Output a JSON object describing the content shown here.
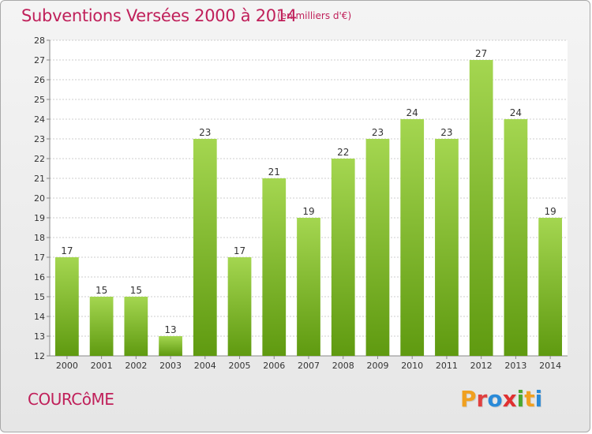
{
  "header": {
    "title": "Subventions Versées 2000 à 2014",
    "subtitle": "(en milliers d'€)"
  },
  "footer": {
    "commune": "COURCôME",
    "logo_text": "Proxiti",
    "logo_letters": [
      {
        "ch": "P",
        "color": "#f0a020"
      },
      {
        "ch": "r",
        "color": "#e04040"
      },
      {
        "ch": "o",
        "color": "#2a8ad8"
      },
      {
        "ch": "x",
        "color": "#e03030"
      },
      {
        "ch": "i",
        "color": "#4aa830"
      },
      {
        "ch": "t",
        "color": "#f0a020"
      },
      {
        "ch": "i",
        "color": "#2a8ad8"
      }
    ]
  },
  "colors": {
    "title": "#c0205a",
    "bar_top": "#a4d650",
    "bar_bottom": "#5f9a10",
    "grid": "#cccccc",
    "axis": "#888888"
  },
  "chart_data": {
    "type": "bar",
    "categories": [
      "2000",
      "2001",
      "2002",
      "2003",
      "2004",
      "2005",
      "2006",
      "2007",
      "2008",
      "2009",
      "2010",
      "2011",
      "2012",
      "2013",
      "2014"
    ],
    "values": [
      17,
      15,
      15,
      13,
      23,
      17,
      21,
      19,
      22,
      23,
      24,
      23,
      27,
      24,
      19
    ],
    "title": "Subventions Versées 2000 à 2014",
    "subtitle": "(en milliers d'€)",
    "ylim": [
      12,
      28
    ],
    "yticks": [
      12,
      13,
      14,
      15,
      16,
      17,
      18,
      19,
      20,
      21,
      22,
      23,
      24,
      25,
      26,
      27,
      28
    ],
    "grid": true,
    "legend": "none"
  }
}
